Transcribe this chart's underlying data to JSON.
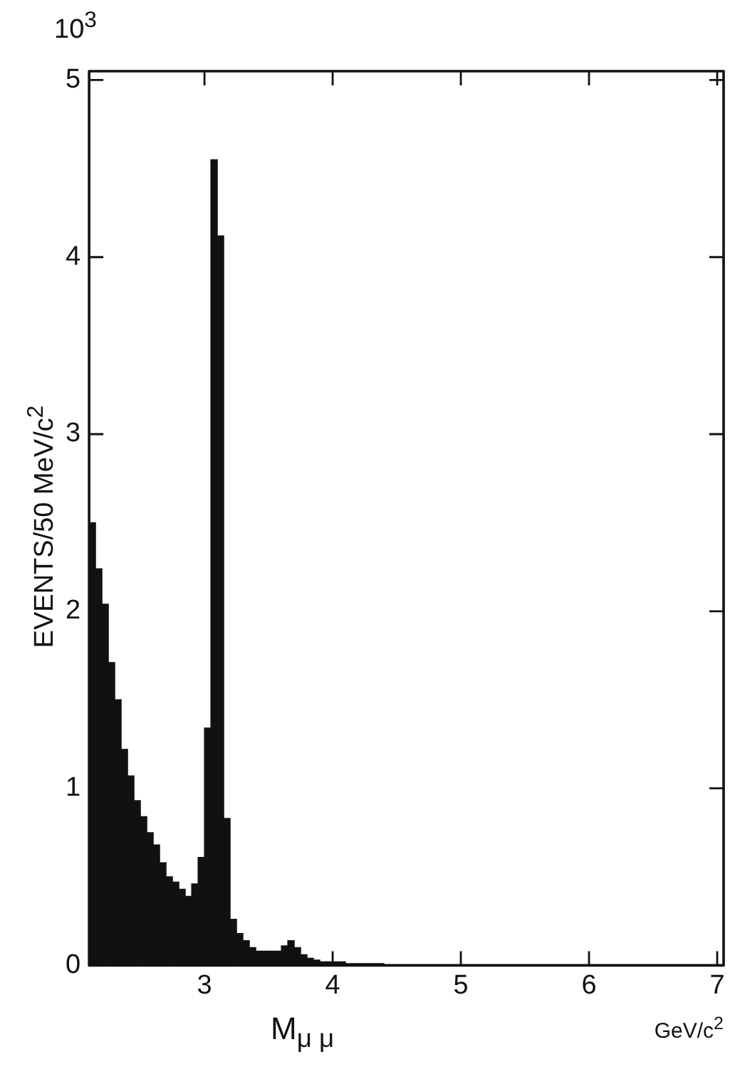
{
  "chart_data": {
    "type": "histogram",
    "ylabel": "EVENTS/50 MeV/c$^{2}$",
    "xlabel": "M$_{μ μ}$",
    "annotations": [
      "10$^{3}$",
      "GeV/c$^{2}$"
    ],
    "bins": [
      2.1,
      2.15,
      2.2,
      2.25,
      2.3,
      2.35,
      2.4,
      2.45,
      2.5,
      2.55,
      2.6,
      2.65,
      2.7,
      2.75,
      2.8,
      2.85,
      2.9,
      2.95,
      3.0,
      3.05,
      3.1,
      3.15,
      3.2,
      3.25,
      3.3,
      3.35,
      3.4,
      3.45,
      3.5,
      3.55,
      3.6,
      3.65,
      3.7,
      3.75,
      3.8,
      3.85,
      3.9,
      3.95,
      4.0,
      4.05,
      4.1,
      4.15,
      4.2,
      4.25,
      4.3,
      4.35,
      4.4,
      4.45,
      4.5,
      4.55,
      4.6
    ],
    "values": [
      2.5,
      2.24,
      2.04,
      1.71,
      1.5,
      1.22,
      1.07,
      0.93,
      0.84,
      0.75,
      0.68,
      0.58,
      0.5,
      0.47,
      0.43,
      0.39,
      0.46,
      0.61,
      1.34,
      4.55,
      4.12,
      0.83,
      0.26,
      0.18,
      0.14,
      0.1,
      0.08,
      0.08,
      0.08,
      0.08,
      0.11,
      0.14,
      0.1,
      0.06,
      0.04,
      0.03,
      0.02,
      0.02,
      0.02,
      0.02,
      0.01,
      0.01,
      0.01,
      0.01,
      0.01,
      0.01,
      0,
      0,
      0,
      0
    ],
    "color": "#111111",
    "xlim": [
      2.1,
      7.05
    ],
    "ylim": [
      0,
      5.05
    ],
    "xticks": [
      3,
      4,
      5,
      6,
      7
    ],
    "yticks": [
      0,
      1,
      2,
      3,
      4,
      5
    ],
    "grid": false,
    "legend": false
  }
}
